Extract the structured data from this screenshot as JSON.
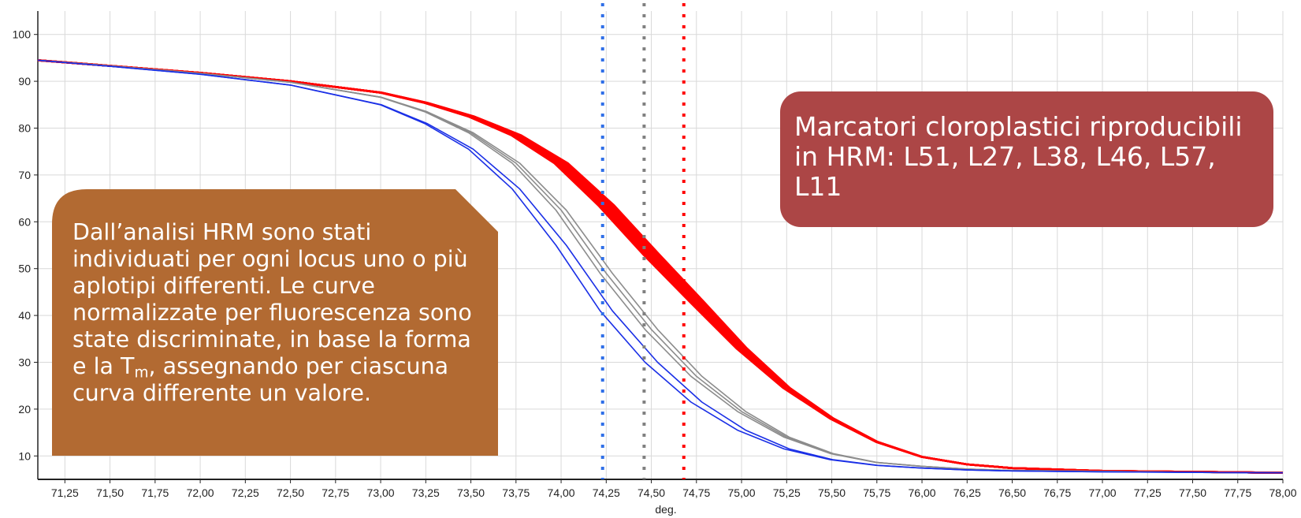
{
  "chart_data": {
    "type": "line",
    "title": "",
    "xlabel": "deg.",
    "ylabel": "",
    "xlim": [
      71.1,
      78.0
    ],
    "ylim": [
      5,
      105
    ],
    "x_ticks": [
      "71,25",
      "71,50",
      "71,75",
      "72,00",
      "72,25",
      "72,50",
      "72,75",
      "73,00",
      "73,25",
      "73,50",
      "73,75",
      "74,00",
      "74,25",
      "74,50",
      "74,75",
      "75,00",
      "75,25",
      "75,50",
      "75,75",
      "76,00",
      "76,25",
      "76,50",
      "76,75",
      "77,00",
      "77,25",
      "77,50",
      "77,75",
      "78,00"
    ],
    "y_ticks": [
      "10",
      "20",
      "30",
      "40",
      "50",
      "60",
      "70",
      "80",
      "90",
      "100"
    ],
    "grid": true,
    "colors": {
      "red": "#ff0000",
      "gray": "#8c8c8c",
      "blue": "#1a2fe6",
      "blue_marker": "#2f6fe8",
      "gray_marker": "#808080",
      "red_marker": "#ff0000"
    },
    "series": [
      {
        "color": "red",
        "count": 12,
        "x": [
          71.1,
          71.5,
          72.0,
          72.5,
          73.0,
          73.25,
          73.5,
          73.75,
          74.0,
          74.25,
          74.5,
          74.75,
          75.0,
          75.25,
          75.5,
          75.75,
          76.0,
          76.25,
          76.5,
          77.0,
          77.5,
          78.0
        ],
        "y": [
          94.5,
          93.3,
          91.8,
          90.0,
          87.6,
          85.4,
          82.5,
          78.5,
          72.5,
          63.5,
          53.0,
          43.0,
          33.0,
          24.5,
          18.0,
          13.0,
          9.8,
          8.2,
          7.4,
          6.8,
          6.6,
          6.4
        ]
      },
      {
        "color": "gray",
        "count": 3,
        "x": [
          71.1,
          71.5,
          72.0,
          72.5,
          73.0,
          73.25,
          73.5,
          73.75,
          74.0,
          74.25,
          74.5,
          74.75,
          75.0,
          75.25,
          75.5,
          75.75,
          76.0,
          76.25,
          76.5,
          77.0,
          77.5,
          78.0
        ],
        "y": [
          94.5,
          93.3,
          91.7,
          89.8,
          86.6,
          83.5,
          79.0,
          72.5,
          62.5,
          49.0,
          37.0,
          27.0,
          19.5,
          14.0,
          10.5,
          8.6,
          7.8,
          7.2,
          6.9,
          6.7,
          6.5,
          6.4
        ]
      },
      {
        "color": "blue",
        "count": 2,
        "x": [
          71.1,
          71.5,
          72.0,
          72.5,
          73.0,
          73.25,
          73.5,
          73.75,
          74.0,
          74.25,
          74.5,
          74.75,
          75.0,
          75.25,
          75.5,
          75.75,
          76.0,
          76.25,
          76.5,
          77.0,
          77.5,
          78.0
        ],
        "y": [
          94.5,
          93.2,
          91.5,
          89.2,
          85.0,
          81.0,
          75.5,
          67.0,
          55.0,
          41.0,
          30.0,
          21.5,
          15.5,
          11.5,
          9.2,
          8.0,
          7.4,
          7.0,
          6.8,
          6.6,
          6.5,
          6.4
        ]
      }
    ],
    "markers": [
      {
        "x": 74.23,
        "color": "blue_marker"
      },
      {
        "x": 74.46,
        "color": "gray_marker"
      },
      {
        "x": 74.68,
        "color": "red_marker"
      }
    ]
  },
  "callouts": {
    "left_html": "Dall’analisi HRM sono stati individuati per ogni locus uno o più aplotipi differenti. Le curve normalizzate per fluorescenza sono state discriminate, in base la forma e la T<sub>m</sub>, assegnando per ciascuna curva differente un valore.",
    "right": "Marcatori cloroplastici riproducibili in HRM: L51, L27, L38, L46, L57, L11",
    "left_color": "#b26a32",
    "right_color": "#ac4646"
  }
}
